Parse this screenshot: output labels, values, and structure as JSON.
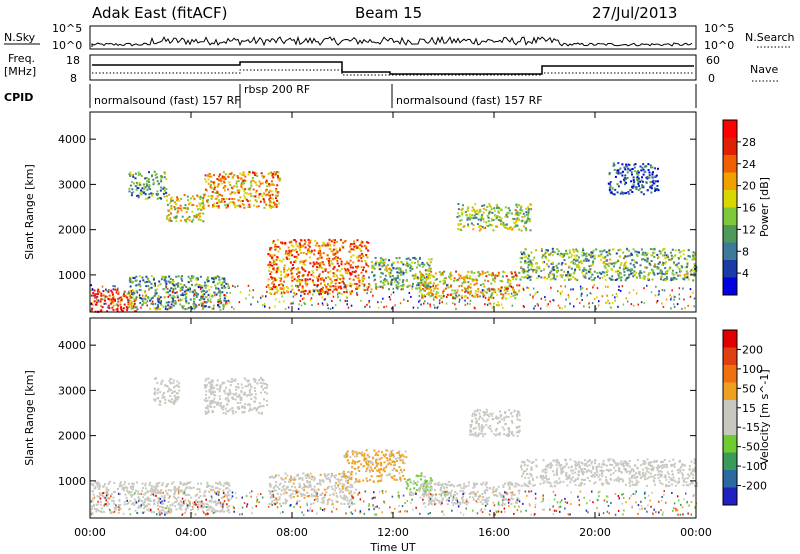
{
  "header": {
    "station": "Adak East (fitACF)",
    "beam": "Beam 15",
    "date": "27/Jul/2013"
  },
  "strip_labels": {
    "nsky": "N.Sky",
    "nsky_ticks": [
      "10^5",
      "10^0"
    ],
    "nsearch": "N.Search",
    "nsearch_ticks": [
      "10^5",
      "10^0"
    ],
    "freq_label": "Freq.",
    "freq_unit": "[MHz]",
    "freq_ticks": [
      "18",
      "8"
    ],
    "nave": "Nave",
    "nave_ticks": [
      "60",
      "0"
    ],
    "cpid": "CPID"
  },
  "cpid_segments": [
    {
      "label": "normalsound (fast) 157 RF",
      "start_hour": 0
    },
    {
      "label": "rbsp 200 RF",
      "start_hour": 6
    },
    {
      "label": "normalsound (fast) 157 RF",
      "start_hour": 12
    }
  ],
  "colors": {
    "power_scale": [
      "#0000e0",
      "#1a3aa8",
      "#3d7a9a",
      "#4e9a5a",
      "#7fc83a",
      "#d8d800",
      "#f0a000",
      "#f06000",
      "#e02000",
      "#ff0000"
    ],
    "velocity_scale": [
      "#2020c0",
      "#2a6aa0",
      "#3a9a5a",
      "#6ccc30",
      "#c8c8c0",
      "#c8c8c0",
      "#f0a020",
      "#f07010",
      "#e04010",
      "#e00000"
    ]
  },
  "chart_data": [
    {
      "type": "heatmap",
      "title": "Power",
      "xlabel": "Time UT",
      "ylabel": "Slant Range [km]",
      "xlim": [
        0,
        24
      ],
      "ylim": [
        180,
        4600
      ],
      "x_ticks": [
        "00:00",
        "04:00",
        "08:00",
        "12:00",
        "16:00",
        "20:00",
        "00:00"
      ],
      "y_ticks": [
        "1000",
        "2000",
        "3000",
        "4000"
      ],
      "colorbar": {
        "label": "Power [dB]",
        "ticks": [
          "28",
          "24",
          "20",
          "16",
          "12",
          "8",
          "4"
        ],
        "range": [
          0,
          30
        ]
      },
      "regions": [
        {
          "t0": 0,
          "t1": 1.8,
          "r0": 200,
          "r1": 700,
          "value": 27
        },
        {
          "t0": 1.5,
          "t1": 5.5,
          "r0": 250,
          "r1": 1000,
          "value": 10
        },
        {
          "t0": 1.5,
          "t1": 3.0,
          "r0": 2700,
          "r1": 3300,
          "value": 10
        },
        {
          "t0": 3.0,
          "t1": 4.5,
          "r0": 2200,
          "r1": 2800,
          "value": 16
        },
        {
          "t0": 4.5,
          "t1": 7.5,
          "r0": 2500,
          "r1": 3300,
          "value": 20
        },
        {
          "t0": 7.0,
          "t1": 11.0,
          "r0": 600,
          "r1": 1800,
          "value": 22
        },
        {
          "t0": 11.0,
          "t1": 13.5,
          "r0": 700,
          "r1": 1400,
          "value": 12
        },
        {
          "t0": 13.0,
          "t1": 17.0,
          "r0": 500,
          "r1": 1100,
          "value": 18
        },
        {
          "t0": 14.5,
          "t1": 17.5,
          "r0": 2000,
          "r1": 2600,
          "value": 14
        },
        {
          "t0": 17.0,
          "t1": 24.0,
          "r0": 900,
          "r1": 1600,
          "value": 12
        },
        {
          "t0": 20.5,
          "t1": 22.5,
          "r0": 2800,
          "r1": 3500,
          "value": 6
        }
      ]
    },
    {
      "type": "heatmap",
      "title": "Velocity",
      "xlabel": "Time UT",
      "ylabel": "Slant Range [km]",
      "xlim": [
        0,
        24
      ],
      "ylim": [
        180,
        4600
      ],
      "x_ticks": [
        "00:00",
        "04:00",
        "08:00",
        "12:00",
        "16:00",
        "20:00",
        "00:00"
      ],
      "y_ticks": [
        "1000",
        "2000",
        "3000",
        "4000"
      ],
      "colorbar": {
        "label": "Velocity [m s^-1]",
        "ticks": [
          "200",
          "100",
          "50",
          "15",
          "-15",
          "-50",
          "-100",
          "-200"
        ],
        "range": [
          -250,
          250
        ]
      },
      "regions": [
        {
          "t0": 0,
          "t1": 5.5,
          "r0": 300,
          "r1": 1000,
          "value": 0
        },
        {
          "t0": 2.5,
          "t1": 3.5,
          "r0": 2700,
          "r1": 3300,
          "value": 0
        },
        {
          "t0": 4.5,
          "t1": 7.0,
          "r0": 2500,
          "r1": 3300,
          "value": 0
        },
        {
          "t0": 7.0,
          "t1": 10.5,
          "r0": 500,
          "r1": 1200,
          "value": 30
        },
        {
          "t0": 10.0,
          "t1": 12.5,
          "r0": 1000,
          "r1": 1700,
          "value": 60
        },
        {
          "t0": 12.5,
          "t1": 13.5,
          "r0": 700,
          "r1": 1200,
          "value": -60
        },
        {
          "t0": 13.0,
          "t1": 17.0,
          "r0": 500,
          "r1": 1000,
          "value": 0
        },
        {
          "t0": 15.0,
          "t1": 17.0,
          "r0": 2000,
          "r1": 2600,
          "value": 0
        },
        {
          "t0": 17.0,
          "t1": 24.0,
          "r0": 900,
          "r1": 1500,
          "value": 0
        }
      ]
    }
  ],
  "axis_bottom": {
    "label": "Time UT"
  }
}
